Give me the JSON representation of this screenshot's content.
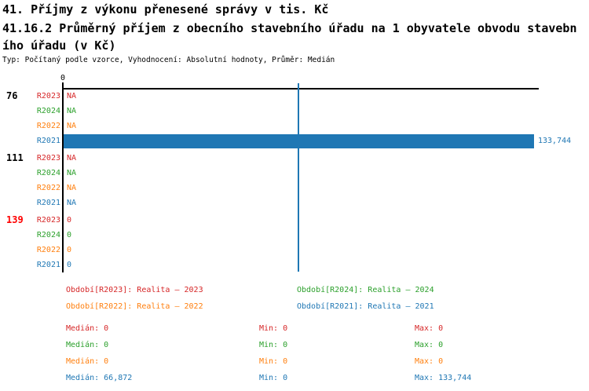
{
  "header": {
    "title": "41. Příjmy z výkonu přenesené správy v tis. Kč",
    "subtitle": "41.16.2 Průměrný příjem z obecního stavebního úřadu na 1 obyvatele obvodu stavebního úřadu (v Kč)",
    "meta": "Typ: Počítaný podle vzorce, Vyhodnocení: Absolutní hodnoty, Průměr: Medián"
  },
  "chart_data": {
    "type": "bar",
    "orientation": "horizontal",
    "value_axis": {
      "position": "top",
      "tick_labels": [
        "0"
      ],
      "min": 0,
      "max": 133744
    },
    "series_order": [
      "R2023",
      "R2024",
      "R2022",
      "R2021"
    ],
    "series_colors": {
      "R2023": "#d62728",
      "R2024": "#2ca02c",
      "R2022": "#ff7f0e",
      "R2021": "#1f77b4"
    },
    "highlight_color": "#ff0000",
    "median_line": {
      "series": "R2021",
      "value": 66872,
      "color": "#1f77b4"
    },
    "groups": [
      {
        "label": "76",
        "highlighted": false,
        "rows": [
          {
            "series": "R2023",
            "value": null,
            "display": "NA"
          },
          {
            "series": "R2024",
            "value": null,
            "display": "NA"
          },
          {
            "series": "R2022",
            "value": null,
            "display": "NA"
          },
          {
            "series": "R2021",
            "value": 133744,
            "display": "133,744"
          }
        ]
      },
      {
        "label": "111",
        "highlighted": false,
        "rows": [
          {
            "series": "R2023",
            "value": null,
            "display": "NA"
          },
          {
            "series": "R2024",
            "value": null,
            "display": "NA"
          },
          {
            "series": "R2022",
            "value": null,
            "display": "NA"
          },
          {
            "series": "R2021",
            "value": null,
            "display": "NA"
          }
        ]
      },
      {
        "label": "139",
        "highlighted": true,
        "rows": [
          {
            "series": "R2023",
            "value": 0,
            "display": "0"
          },
          {
            "series": "R2024",
            "value": 0,
            "display": "0"
          },
          {
            "series": "R2022",
            "value": 0,
            "display": "0"
          },
          {
            "series": "R2021",
            "value": 0,
            "display": "0"
          }
        ]
      }
    ],
    "summary": [
      {
        "series": "R2023",
        "median": 0,
        "min": 0,
        "max": 0
      },
      {
        "series": "R2024",
        "median": 0,
        "min": 0,
        "max": 0
      },
      {
        "series": "R2022",
        "median": 0,
        "min": 0,
        "max": 0
      },
      {
        "series": "R2021",
        "median": 66872,
        "min": 0,
        "max": 133744
      }
    ]
  },
  "legend": {
    "items": [
      {
        "series": "R2023",
        "text": "Období[R2023]: Realita – 2023"
      },
      {
        "series": "R2024",
        "text": "Období[R2024]: Realita – 2024"
      },
      {
        "series": "R2022",
        "text": "Období[R2022]: Realita – 2022"
      },
      {
        "series": "R2021",
        "text": "Období[R2021]: Realita – 2021"
      }
    ]
  },
  "stats": {
    "rows": [
      {
        "series": "R2023",
        "median": "Medián: 0",
        "min": "Min: 0",
        "max": "Max: 0"
      },
      {
        "series": "R2024",
        "median": "Medián: 0",
        "min": "Min: 0",
        "max": "Max: 0"
      },
      {
        "series": "R2022",
        "median": "Medián: 0",
        "min": "Min: 0",
        "max": "Max: 0"
      },
      {
        "series": "R2021",
        "median": "Medián: 66,872",
        "min": "Min: 0",
        "max": "Max: 133,744"
      }
    ]
  }
}
